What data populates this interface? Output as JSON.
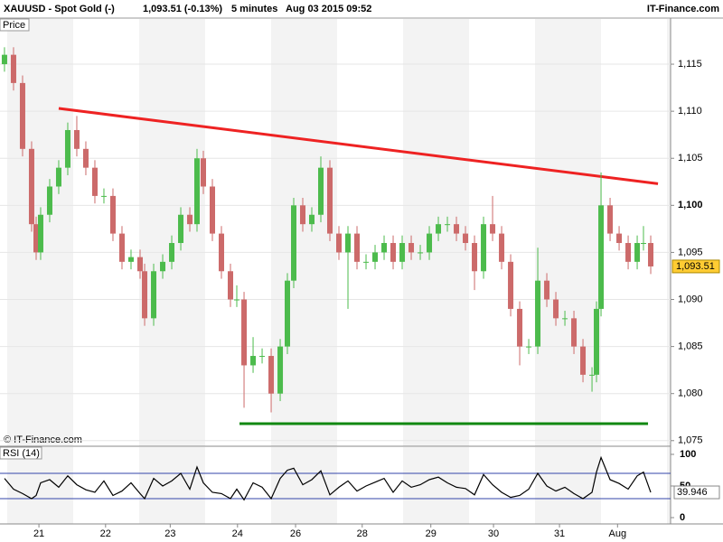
{
  "chart_data": {
    "type": "candlestick",
    "symbol": "XAUUSD - Spot Gold (-)",
    "quote": "1,093.51 (-0.13%)",
    "interval": "5 minutes",
    "timestamp": "Aug 03 2015 09:52",
    "source": "IT-Finance.com",
    "panel_label": "Price",
    "copyright": "© IT-Finance.com",
    "xlim": [
      0,
      10.164
    ],
    "xticks": [
      {
        "value": 0.59,
        "label": "21"
      },
      {
        "value": 1.6,
        "label": "22"
      },
      {
        "value": 2.58,
        "label": "23"
      },
      {
        "value": 3.6,
        "label": "24"
      },
      {
        "value": 4.48,
        "label": "26"
      },
      {
        "value": 5.49,
        "label": "28"
      },
      {
        "value": 6.53,
        "label": "29"
      },
      {
        "value": 7.48,
        "label": "30"
      },
      {
        "value": 8.48,
        "label": "31"
      },
      {
        "value": 9.36,
        "label": "Aug"
      }
    ],
    "ylim": [
      1074.5,
      1119.9
    ],
    "yticks": [
      {
        "value": 1075,
        "label": "1,075"
      },
      {
        "value": 1080,
        "label": "1,080"
      },
      {
        "value": 1085,
        "label": "1,085"
      },
      {
        "value": 1090,
        "label": "1,090"
      },
      {
        "value": 1095,
        "label": "1,095"
      },
      {
        "value": 1100,
        "label": "1,100"
      },
      {
        "value": 1105,
        "label": "1,105"
      },
      {
        "value": 1110,
        "label": "1,110"
      },
      {
        "value": 1115,
        "label": "1,115"
      }
    ],
    "grid": true,
    "up_color": "#4cbb4c",
    "down_color": "#cc6a6a",
    "x": [
      0.068,
      0.205,
      0.342,
      0.479,
      0.548,
      0.616,
      0.753,
      0.89,
      1.027,
      1.164,
      1.301,
      1.438,
      1.575,
      1.712,
      1.849,
      1.986,
      2.123,
      2.192,
      2.329,
      2.466,
      2.603,
      2.74,
      2.877,
      2.986,
      3.082,
      3.219,
      3.356,
      3.493,
      3.589,
      3.699,
      3.836,
      3.973,
      4.11,
      4.247,
      4.356,
      4.452,
      4.589,
      4.726,
      4.863,
      5,
      5.137,
      5.274,
      5.411,
      5.548,
      5.685,
      5.822,
      5.959,
      6.096,
      6.233,
      6.37,
      6.507,
      6.644,
      6.781,
      6.918,
      7.055,
      7.192,
      7.329,
      7.466,
      7.603,
      7.74,
      7.877,
      8.014,
      8.151,
      8.288,
      8.425,
      8.562,
      8.699,
      8.836,
      8.973,
      9.041,
      9.11,
      9.247,
      9.384,
      9.521,
      9.658,
      9.753,
      9.863
    ],
    "open": [
      1115,
      1116,
      1113,
      1106,
      1098,
      1095,
      1099,
      1102,
      1104,
      1108,
      1106,
      1104,
      1101,
      1101,
      1097,
      1094,
      1094.5,
      1093,
      1088,
      1093,
      1094,
      1096,
      1099,
      1098,
      1105,
      1102,
      1097,
      1093,
      1090,
      1090,
      1083,
      1084,
      1084,
      1080,
      1085,
      1092,
      1100,
      1098,
      1099,
      1104,
      1097,
      1095,
      1097,
      1094,
      1094,
      1095,
      1096,
      1094,
      1096,
      1095,
      1095,
      1097,
      1098,
      1098,
      1097,
      1096,
      1093,
      1098,
      1097,
      1094,
      1089,
      1085,
      1085,
      1092,
      1090,
      1088,
      1088,
      1085,
      1082,
      1082,
      1089,
      1100,
      1097,
      1096,
      1094,
      1096,
      1096
    ],
    "high": [
      1116.8,
      1116.8,
      1113.8,
      1106.8,
      1098.8,
      1099.8,
      1102.8,
      1104.8,
      1108.8,
      1109.5,
      1106.8,
      1104.8,
      1101.8,
      1101.8,
      1097.8,
      1095.3,
      1095.3,
      1093.8,
      1093.8,
      1094.8,
      1096.8,
      1099.8,
      1099.8,
      1106,
      1105.8,
      1102.8,
      1097.8,
      1093.8,
      1091.5,
      1090.8,
      1086,
      1084.8,
      1084.8,
      1085.8,
      1092.8,
      1100.8,
      1100.8,
      1099.8,
      1105.2,
      1104.8,
      1097.8,
      1097.8,
      1097.8,
      1094.8,
      1095.8,
      1096.8,
      1096.8,
      1096.8,
      1096.8,
      1095.8,
      1097.8,
      1098.8,
      1098.8,
      1098.8,
      1097.8,
      1096.8,
      1098.8,
      1101,
      1097.8,
      1094.8,
      1089.8,
      1085.8,
      1095.5,
      1092.8,
      1090.8,
      1088.8,
      1088.8,
      1085.8,
      1082.8,
      1089.8,
      1103.5,
      1100.8,
      1097.8,
      1096.8,
      1096.8,
      1097.8,
      1096.8
    ],
    "low": [
      1114.2,
      1112.2,
      1105.2,
      1097.2,
      1094.2,
      1094.2,
      1098.2,
      1101.2,
      1103.2,
      1105.2,
      1103.2,
      1100.2,
      1100.2,
      1096.2,
      1093.2,
      1093.2,
      1092.2,
      1087.2,
      1087.2,
      1092.2,
      1093.2,
      1095.2,
      1097.2,
      1097.2,
      1101.2,
      1096.2,
      1092.2,
      1089.2,
      1089.2,
      1078.5,
      1082.2,
      1083.2,
      1078,
      1079.2,
      1084.2,
      1091.2,
      1097.2,
      1097.2,
      1098.2,
      1096.2,
      1094.2,
      1089,
      1093.2,
      1093.2,
      1093.2,
      1094.2,
      1093.2,
      1093.2,
      1094.2,
      1094.2,
      1094.2,
      1096.2,
      1097.2,
      1096.2,
      1095.2,
      1091,
      1092.2,
      1096.2,
      1093.2,
      1088.2,
      1083,
      1084.2,
      1084.2,
      1089.2,
      1087.2,
      1087.2,
      1084.2,
      1081.2,
      1080.2,
      1081.2,
      1088.2,
      1096.2,
      1095.2,
      1093.2,
      1093.2,
      1095.2,
      1092.7
    ],
    "close": [
      1116,
      1113,
      1106,
      1098,
      1095,
      1099,
      1102,
      1104,
      1108,
      1106,
      1104,
      1101,
      1101,
      1097,
      1094,
      1094.5,
      1093,
      1088,
      1093,
      1094,
      1096,
      1099,
      1098,
      1105,
      1102,
      1097,
      1093,
      1090,
      1090,
      1083,
      1084,
      1084,
      1080,
      1085,
      1092,
      1100,
      1098,
      1099,
      1104,
      1097,
      1095,
      1097,
      1094,
      1094,
      1095,
      1096,
      1094,
      1096,
      1095,
      1095,
      1097,
      1098,
      1098,
      1097,
      1096,
      1093,
      1098,
      1097,
      1094,
      1089,
      1085,
      1085,
      1092,
      1090,
      1088,
      1088,
      1085,
      1082,
      1082,
      1089,
      1100,
      1097,
      1096,
      1094,
      1096,
      1096,
      1093.51
    ],
    "last_price": {
      "value": 1093.51,
      "label": "1,093.51"
    },
    "trend_lines": [
      {
        "x": [
          0.89,
          9.973
        ],
        "y": [
          1110.3,
          1102.3
        ],
        "color": "#ee2222"
      },
      {
        "x": [
          3.63,
          9.822
        ],
        "y": [
          1076.8,
          1076.8
        ],
        "color": "#118811"
      }
    ],
    "rsi": {
      "label": "RSI (14)",
      "ylim": [
        -10,
        111.4
      ],
      "yticks": [
        0,
        50,
        100
      ],
      "levels": [
        30,
        70
      ],
      "level_color": "#3344aa",
      "color": "#000000",
      "values": [
        62,
        45,
        38,
        30,
        35,
        55,
        60,
        48,
        66,
        52,
        44,
        40,
        58,
        35,
        42,
        55,
        38,
        30,
        62,
        50,
        58,
        70,
        45,
        80,
        55,
        40,
        38,
        30,
        45,
        28,
        55,
        48,
        30,
        62,
        75,
        78,
        52,
        60,
        74,
        36,
        48,
        58,
        42,
        50,
        56,
        62,
        40,
        58,
        48,
        52,
        60,
        64,
        55,
        48,
        46,
        36,
        68,
        52,
        40,
        32,
        35,
        45,
        70,
        50,
        42,
        48,
        38,
        30,
        40,
        72,
        95,
        60,
        54,
        45,
        66,
        72,
        39.946
      ],
      "last": {
        "value": 39.946,
        "label": "39.946"
      }
    }
  }
}
